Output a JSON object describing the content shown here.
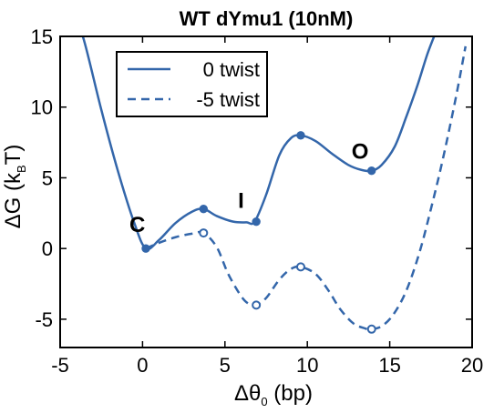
{
  "chart_data": {
    "type": "line",
    "title": "WT dYmu1 (10nM)",
    "xlabel": {
      "main": "Δθ",
      "sub": "0",
      "tail": " (bp)"
    },
    "ylabel": {
      "main": "ΔG (k",
      "sub": "B",
      "tail": "T)"
    },
    "xlim": [
      -5,
      20
    ],
    "ylim": [
      -7,
      15
    ],
    "xticks": [
      -5,
      0,
      5,
      10,
      15,
      20
    ],
    "yticks": [
      -5,
      0,
      5,
      10,
      15
    ],
    "grid": false,
    "legend_position": "top-left",
    "colors": {
      "line": "#3366aa"
    },
    "series": [
      {
        "name": "0 twist",
        "style": "solid",
        "marker": "filled",
        "x": [
          -4.2,
          -3.5,
          -2.5,
          -1.5,
          -0.5,
          0.2,
          1.0,
          2.0,
          3.0,
          3.7,
          4.5,
          5.5,
          6.3,
          6.8,
          7.5,
          8.3,
          9.0,
          9.6,
          10.5,
          11.5,
          12.5,
          13.3,
          13.9,
          14.5,
          15.3,
          16.0,
          16.7,
          17.3,
          17.9
        ],
        "y": [
          17.0,
          14.5,
          9.8,
          5.5,
          1.8,
          0.0,
          0.6,
          1.8,
          2.6,
          2.8,
          2.3,
          1.9,
          1.85,
          1.9,
          3.8,
          6.6,
          7.8,
          8.0,
          7.6,
          6.7,
          5.9,
          5.55,
          5.5,
          5.9,
          7.2,
          9.3,
          11.6,
          13.8,
          15.6
        ]
      },
      {
        "name": "-5 twist",
        "style": "dashed",
        "marker": "open",
        "x": [
          0.2,
          1.0,
          2.0,
          3.0,
          3.7,
          4.5,
          5.2,
          6.0,
          6.5,
          6.9,
          7.5,
          8.3,
          9.0,
          9.6,
          10.5,
          11.3,
          12.0,
          12.8,
          13.5,
          13.9,
          14.5,
          15.2,
          16.0,
          16.8,
          17.5,
          18.2,
          19.0,
          19.6
        ],
        "y": [
          0.0,
          0.4,
          0.8,
          1.05,
          1.1,
          0.1,
          -1.8,
          -3.4,
          -3.95,
          -4.0,
          -3.5,
          -2.2,
          -1.45,
          -1.3,
          -1.8,
          -3.0,
          -4.3,
          -5.3,
          -5.65,
          -5.7,
          -5.5,
          -4.7,
          -3.0,
          -0.3,
          2.8,
          6.2,
          10.6,
          14.3
        ]
      }
    ],
    "markers": {
      "0 twist": [
        {
          "x": 0.2,
          "y": 0.0
        },
        {
          "x": 3.7,
          "y": 2.8
        },
        {
          "x": 6.9,
          "y": 1.9
        },
        {
          "x": 9.6,
          "y": 8.0
        },
        {
          "x": 13.9,
          "y": 5.5
        }
      ],
      "-5 twist": [
        {
          "x": 3.7,
          "y": 1.1
        },
        {
          "x": 6.9,
          "y": -4.0
        },
        {
          "x": 9.6,
          "y": -1.3
        },
        {
          "x": 13.9,
          "y": -5.7
        }
      ]
    },
    "annotations": [
      {
        "text": "C",
        "x": 0.2,
        "y": 0.0
      },
      {
        "text": "I",
        "x": 6.9,
        "y": 1.9
      },
      {
        "text": "O",
        "x": 13.9,
        "y": 5.5
      }
    ]
  }
}
